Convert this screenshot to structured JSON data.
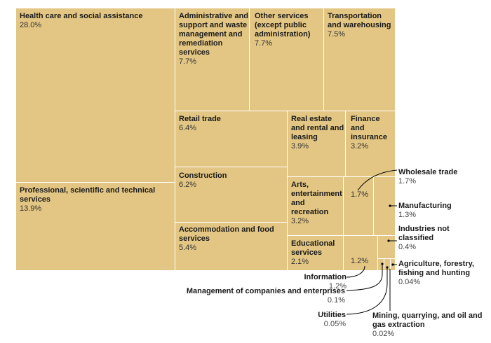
{
  "chart_data": {
    "type": "treemap",
    "colors": {
      "tile": "#e3c684",
      "border": "#ffffff",
      "leader": "#000000"
    },
    "items": [
      {
        "name": "Health care and social assistance",
        "label": "28.0%",
        "value": 28.0
      },
      {
        "name": "Professional, scientific and technical services",
        "label": "13.9%",
        "value": 13.9
      },
      {
        "name": "Administrative and support and waste management and remediation services",
        "label": "7.7%",
        "value": 7.7
      },
      {
        "name": "Other services (except public administration)",
        "label": "7.7%",
        "value": 7.7
      },
      {
        "name": "Transportation and warehousing",
        "label": "7.5%",
        "value": 7.5
      },
      {
        "name": "Retail trade",
        "label": "6.4%",
        "value": 6.4
      },
      {
        "name": "Construction",
        "label": "6.2%",
        "value": 6.2
      },
      {
        "name": "Accommodation and food services",
        "label": "5.4%",
        "value": 5.4
      },
      {
        "name": "Real estate and rental and leasing",
        "label": "3.9%",
        "value": 3.9
      },
      {
        "name": "Finance and insurance",
        "label": "3.2%",
        "value": 3.2
      },
      {
        "name": "Arts, entertainment and recreation",
        "label": "3.2%",
        "value": 3.2
      },
      {
        "name": "Educational services",
        "label": "2.1%",
        "value": 2.1
      },
      {
        "name": "Wholesale trade",
        "label": "1.7%",
        "value": 1.7
      },
      {
        "name": "Manufacturing",
        "label": "1.3%",
        "value": 1.3
      },
      {
        "name": "Information",
        "label": "1.2%",
        "value": 1.2
      },
      {
        "name": "Industries not classified",
        "label": "0.4%",
        "value": 0.4
      },
      {
        "name": "Management of companies and enterprises",
        "label": "0.1%",
        "value": 0.1
      },
      {
        "name": "Utilities",
        "label": "0.05%",
        "value": 0.05
      },
      {
        "name": "Agriculture, forestry, fishing and hunting",
        "label": "0.04%",
        "value": 0.04
      },
      {
        "name": "Mining, quarrying, and oil and gas extraction",
        "label": "0.02%",
        "value": 0.02
      }
    ]
  }
}
